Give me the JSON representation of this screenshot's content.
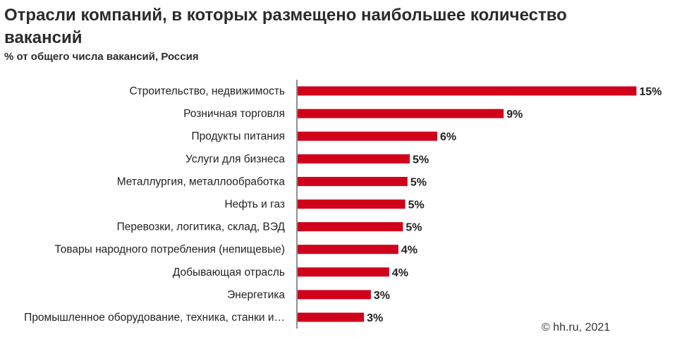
{
  "header": {
    "title": "Отрасли компаний, в которых размещено наибольшее количество вакансий",
    "subtitle": "% от общего числа вакансий, Россия"
  },
  "footer": {
    "source": "© hh.ru, 2021"
  },
  "colors": {
    "bar": "#d0021b",
    "axis": "#222222",
    "text": "#222222"
  },
  "chart_data": {
    "type": "bar",
    "orientation": "horizontal",
    "categories": [
      "Строительство, недвижимость",
      "Розничная торговля",
      "Продукты питания",
      "Услуги для бизнеса",
      "Металлургия, металлообработка",
      "Нефть и газ",
      "Перевозки, логитика, склад, ВЭД",
      "Товары народного потребления (непищевые)",
      "Добывающая отрасль",
      "Энергетика",
      "Промышленное оборудование, техника, станки и…"
    ],
    "values": [
      14.8,
      9.0,
      6.1,
      4.9,
      4.8,
      4.7,
      4.6,
      4.4,
      4.0,
      3.2,
      2.9
    ],
    "labels": [
      "15%",
      "9%",
      "6%",
      "5%",
      "5%",
      "5%",
      "5%",
      "4%",
      "4%",
      "3%",
      "3%"
    ],
    "xlim": [
      0,
      15
    ],
    "grid": false,
    "legend": "none"
  }
}
